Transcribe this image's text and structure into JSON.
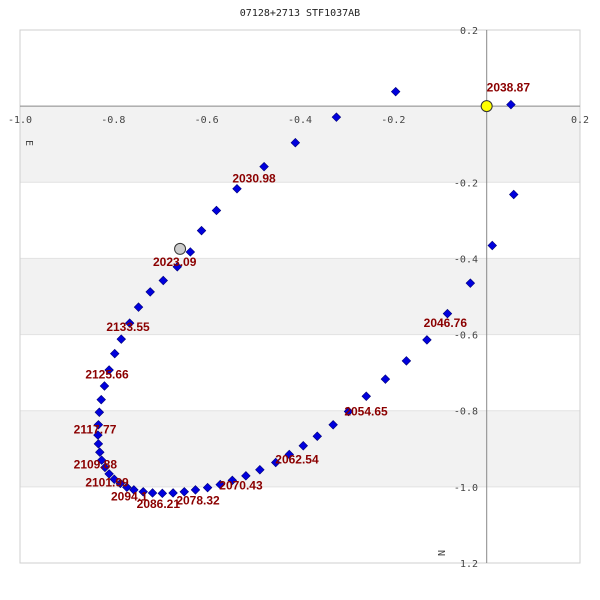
{
  "chart_data": {
    "type": "scatter",
    "title": "07128+2713 STF1037AB",
    "xlabel": "E",
    "ylabel": "N",
    "xlim": [
      -1.0,
      0.2
    ],
    "ylim": [
      1.2,
      -0.2
    ],
    "x_ticks": [
      "-1.0",
      "-0.8",
      "-0.6",
      "-0.4",
      "-0.2",
      "0.2"
    ],
    "y_ticks": [
      "0.2",
      "-0.2",
      "-0.4",
      "-0.6",
      "-0.8",
      "-1.0",
      "1.2"
    ],
    "grid": true,
    "banding": true,
    "colors": {
      "points": "#0000dd",
      "labels": "#8b0000",
      "origin_marker": "#ffff00",
      "reference_marker": "#cccccc",
      "band": "#f2f2f2",
      "axis": "#888888"
    },
    "points": [
      [
        0.052,
        -0.004
      ],
      [
        0.058,
        0.232
      ],
      [
        0.012,
        0.366
      ],
      [
        -0.035,
        0.465
      ],
      [
        -0.084,
        0.545
      ],
      [
        -0.128,
        0.614
      ],
      [
        -0.172,
        0.669
      ],
      [
        -0.217,
        0.717
      ],
      [
        -0.258,
        0.762
      ],
      [
        -0.296,
        0.802
      ],
      [
        -0.329,
        0.837
      ],
      [
        -0.363,
        0.867
      ],
      [
        -0.393,
        0.892
      ],
      [
        -0.423,
        0.915
      ],
      [
        -0.452,
        0.936
      ],
      [
        -0.486,
        0.955
      ],
      [
        -0.516,
        0.971
      ],
      [
        -0.545,
        0.983
      ],
      [
        -0.571,
        0.994
      ],
      [
        -0.598,
        1.002
      ],
      [
        -0.624,
        1.008
      ],
      [
        -0.648,
        1.013
      ],
      [
        -0.672,
        1.016
      ],
      [
        -0.695,
        1.017
      ],
      [
        -0.716,
        1.016
      ],
      [
        -0.736,
        1.013
      ],
      [
        -0.756,
        1.008
      ],
      [
        -0.771,
        1.001
      ],
      [
        -0.785,
        0.991
      ],
      [
        -0.798,
        0.98
      ],
      [
        -0.809,
        0.966
      ],
      [
        -0.818,
        0.949
      ],
      [
        -0.825,
        0.93
      ],
      [
        -0.829,
        0.909
      ],
      [
        -0.832,
        0.887
      ],
      [
        -0.833,
        0.864
      ],
      [
        -0.832,
        0.837
      ],
      [
        -0.83,
        0.804
      ],
      [
        -0.826,
        0.771
      ],
      [
        -0.819,
        0.735
      ],
      [
        -0.809,
        0.693
      ],
      [
        -0.797,
        0.65
      ],
      [
        -0.783,
        0.612
      ],
      [
        -0.765,
        0.57
      ],
      [
        -0.746,
        0.528
      ],
      [
        -0.721,
        0.488
      ],
      [
        -0.693,
        0.458
      ],
      [
        -0.663,
        0.422
      ],
      [
        -0.635,
        0.383
      ],
      [
        -0.611,
        0.327
      ],
      [
        -0.579,
        0.274
      ],
      [
        -0.535,
        0.217
      ],
      [
        -0.477,
        0.159
      ],
      [
        -0.41,
        0.096
      ],
      [
        -0.322,
        0.029
      ],
      [
        -0.195,
        -0.038
      ]
    ],
    "epoch_labels": [
      {
        "text": "2038.87",
        "x": 0.0,
        "y": -0.038
      },
      {
        "text": "2030.98",
        "x": -0.545,
        "y": 0.2
      },
      {
        "text": "2023.09",
        "x": -0.715,
        "y": 0.42
      },
      {
        "text": "2046.76",
        "x": -0.135,
        "y": 0.58
      },
      {
        "text": "2133.55",
        "x": -0.815,
        "y": 0.59
      },
      {
        "text": "2125.66",
        "x": -0.86,
        "y": 0.715
      },
      {
        "text": "2054.65",
        "x": -0.305,
        "y": 0.812
      },
      {
        "text": "2117.77",
        "x": -0.885,
        "y": 0.86
      },
      {
        "text": "2062.54",
        "x": -0.453,
        "y": 0.939
      },
      {
        "text": "2109.88",
        "x": -0.885,
        "y": 0.952
      },
      {
        "text": "2101.99",
        "x": -0.86,
        "y": 0.999
      },
      {
        "text": "2070.43",
        "x": -0.573,
        "y": 1.007
      },
      {
        "text": "2094.1",
        "x": -0.805,
        "y": 1.036
      },
      {
        "text": "2078.32",
        "x": -0.665,
        "y": 1.046
      },
      {
        "text": "2086.21",
        "x": -0.75,
        "y": 1.056
      }
    ],
    "origin_marker": {
      "x": 0.0,
      "y": 0.0
    },
    "reference_marker": {
      "x": -0.657,
      "y": 0.375
    }
  }
}
